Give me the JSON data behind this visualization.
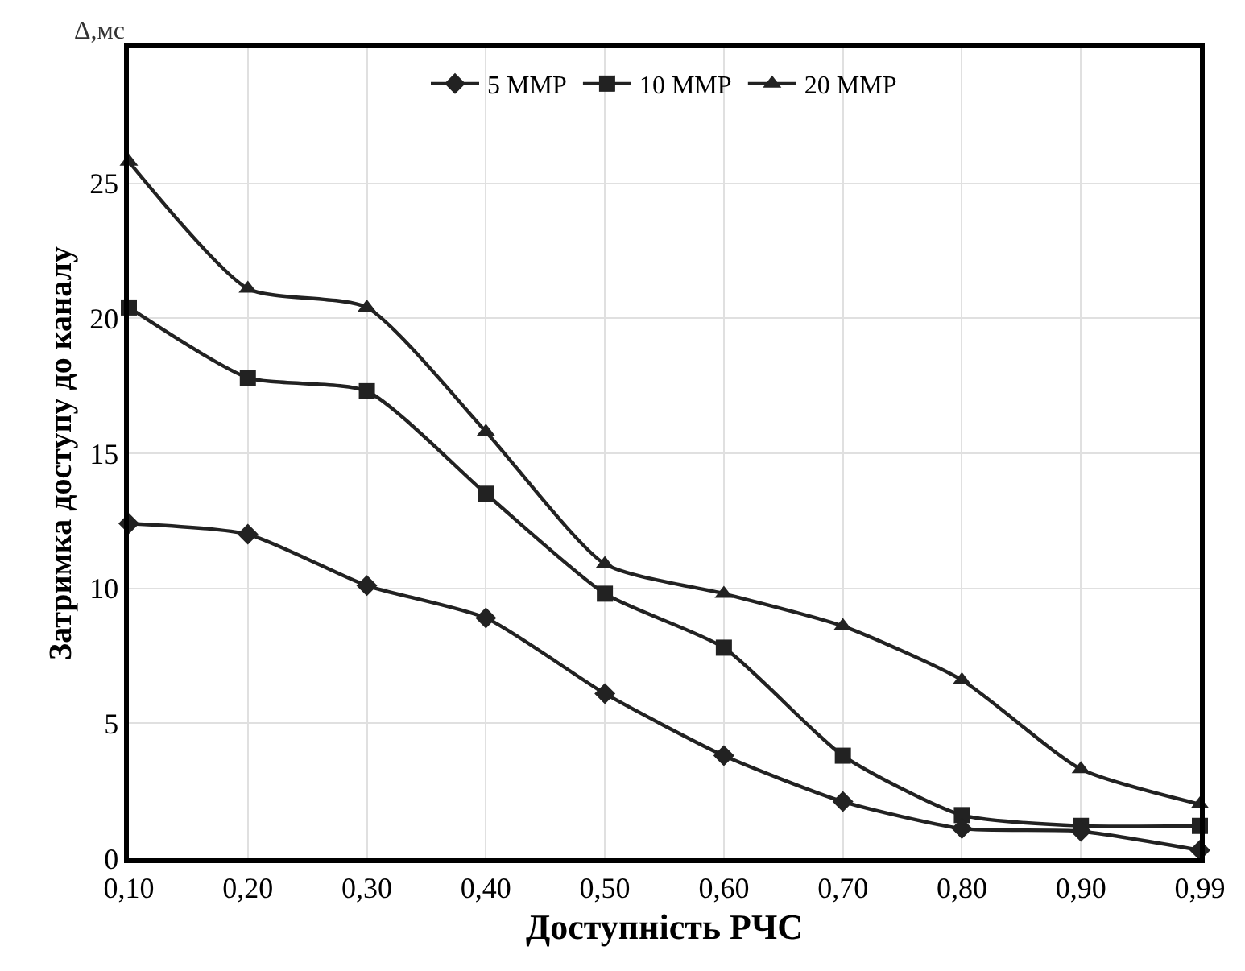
{
  "chart_data": {
    "type": "line",
    "xlabel": "Доступність РЧС",
    "ylabel": "Затримка доступу до каналу",
    "annotations": [
      "Δ,мс"
    ],
    "categories": [
      "0,10",
      "0,20",
      "0,30",
      "0,40",
      "0,50",
      "0,60",
      "0,70",
      "0,80",
      "0,90",
      "0,99"
    ],
    "series": [
      {
        "name": "5 MMP",
        "color": "#222222",
        "marker": "diamond",
        "values": [
          12.4,
          12.0,
          10.1,
          8.9,
          6.1,
          3.8,
          2.1,
          1.1,
          1.0,
          0.3
        ]
      },
      {
        "name": "10 MMP",
        "color": "#222222",
        "marker": "square",
        "values": [
          20.4,
          17.8,
          17.3,
          13.5,
          9.8,
          7.8,
          3.8,
          1.6,
          1.2,
          1.2
        ]
      },
      {
        "name": "20 MMP",
        "color": "#222222",
        "marker": "triangle",
        "values": [
          25.8,
          21.1,
          20.4,
          15.8,
          10.9,
          9.8,
          8.6,
          6.6,
          3.3,
          2.0
        ]
      }
    ],
    "ylim": [
      0,
      30
    ],
    "yticks": [
      0,
      5,
      10,
      15,
      20,
      25,
      {
        "value": 30,
        "label": null
      }
    ],
    "grid": true,
    "legend": "top",
    "line_style": "solid"
  }
}
